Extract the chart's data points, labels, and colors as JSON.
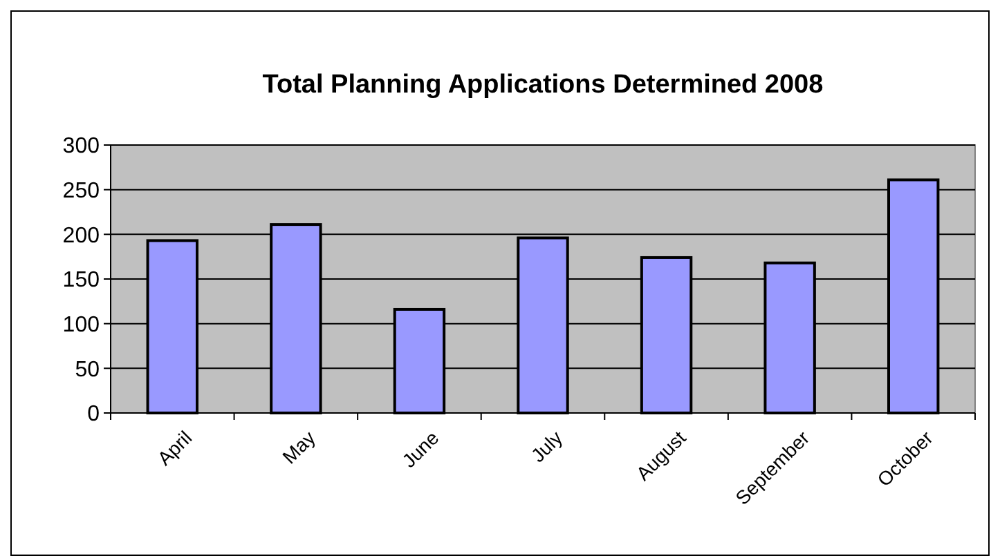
{
  "chart_data": {
    "type": "bar",
    "title": "Total Planning Applications Determined 2008",
    "categories": [
      "April",
      "May",
      "June",
      "July",
      "August",
      "September",
      "October"
    ],
    "values": [
      193,
      211,
      116,
      196,
      174,
      168,
      261
    ],
    "color": "#9999ff",
    "ylim": [
      0,
      300
    ],
    "yticks": [
      0,
      50,
      100,
      150,
      200,
      250,
      300
    ],
    "grid": "y"
  }
}
